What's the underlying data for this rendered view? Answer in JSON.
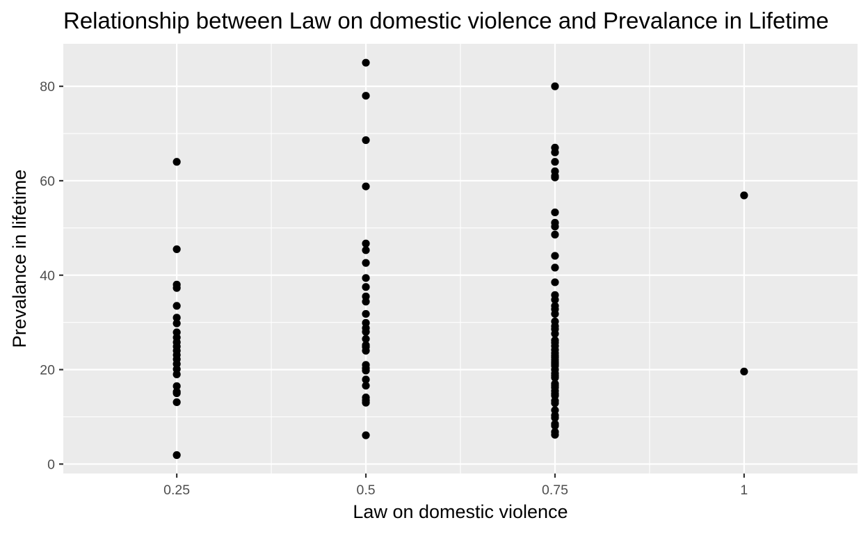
{
  "chart_data": {
    "type": "scatter",
    "title": "Relationship between Law on domestic violence and Prevalance in Lifetime",
    "xlabel": "Law on domestic violence",
    "ylabel": "Prevalance in lifetime",
    "xlim": [
      0.1,
      1.15
    ],
    "ylim": [
      -2,
      89
    ],
    "x_ticks": [
      0.25,
      0.5,
      0.75,
      1
    ],
    "x_tick_labels": [
      "0.25",
      "0.5",
      "0.75",
      "1"
    ],
    "y_ticks": [
      0,
      20,
      40,
      60,
      80
    ],
    "y_tick_labels": [
      "0",
      "20",
      "40",
      "60",
      "80"
    ],
    "grid": true,
    "colors": {
      "panel_background": "#ebebeb",
      "gridline": "#ffffff",
      "point": "#000000"
    },
    "series": [
      {
        "x": [
          0.25,
          0.25,
          0.25,
          0.25,
          0.25,
          0.25,
          0.25,
          0.25,
          0.25,
          0.25,
          0.25,
          0.25,
          0.25,
          0.25,
          0.25,
          0.25,
          0.25,
          0.25,
          0.25,
          0.25,
          0.25,
          0.25,
          0.5,
          0.5,
          0.5,
          0.5,
          0.5,
          0.5,
          0.5,
          0.5,
          0.5,
          0.5,
          0.5,
          0.5,
          0.5,
          0.5,
          0.5,
          0.5,
          0.5,
          0.5,
          0.5,
          0.5,
          0.5,
          0.5,
          0.5,
          0.5,
          0.5,
          0.5,
          0.5,
          0.5,
          0.75,
          0.75,
          0.75,
          0.75,
          0.75,
          0.75,
          0.75,
          0.75,
          0.75,
          0.75,
          0.75,
          0.75,
          0.75,
          0.75,
          0.75,
          0.75,
          0.75,
          0.75,
          0.75,
          0.75,
          0.75,
          0.75,
          0.75,
          0.75,
          0.75,
          0.75,
          0.75,
          0.75,
          0.75,
          0.75,
          0.75,
          0.75,
          0.75,
          0.75,
          0.75,
          0.75,
          0.75,
          0.75,
          0.75,
          0.75,
          0.75,
          0.75,
          0.75,
          0.75,
          0.75,
          0.75,
          0.75,
          0.75,
          0.75,
          0.75,
          0.75,
          0.75,
          0.75,
          1,
          1
        ],
        "y": [
          64.0,
          45.5,
          38.0,
          37.3,
          33.5,
          31.0,
          29.8,
          27.9,
          26.8,
          25.8,
          24.9,
          24.0,
          23.1,
          22.2,
          21.2,
          20.1,
          19.0,
          16.5,
          15.3,
          15.0,
          13.1,
          1.9,
          85.0,
          78.0,
          68.6,
          58.8,
          46.7,
          45.3,
          42.6,
          39.4,
          37.5,
          35.5,
          34.4,
          31.8,
          29.9,
          28.8,
          28.0,
          26.5,
          24.8,
          24.0,
          21.0,
          20.3,
          19.8,
          17.9,
          16.6,
          14.1,
          13.5,
          13.0,
          6.1,
          25.2,
          80.0,
          67.0,
          66.0,
          64.0,
          62.0,
          61.0,
          60.7,
          53.3,
          51.1,
          50.3,
          48.6,
          44.1,
          41.6,
          38.5,
          35.8,
          34.8,
          33.5,
          32.8,
          31.8,
          30.2,
          29.2,
          28.6,
          27.6,
          25.7,
          25.0,
          24.2,
          23.5,
          22.6,
          21.6,
          20.8,
          20.0,
          19.2,
          18.3,
          17.0,
          16.2,
          15.5,
          14.5,
          13.4,
          12.9,
          11.4,
          10.3,
          9.8,
          8.5,
          8.1,
          6.8,
          6.2,
          23.0,
          21.2,
          26.2,
          22.1,
          18.7,
          14.9,
          16.6,
          56.9,
          19.6
        ]
      }
    ]
  }
}
